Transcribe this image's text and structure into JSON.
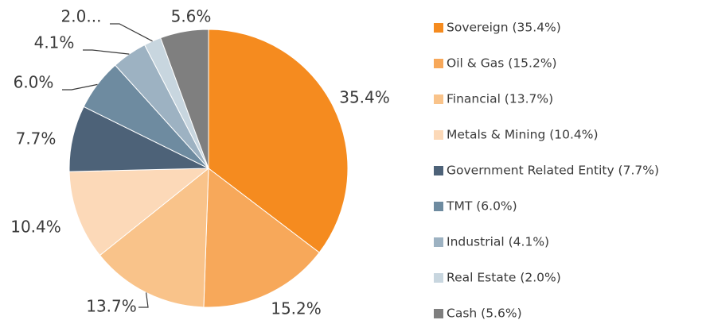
{
  "chart_data": {
    "type": "pie",
    "categories": [
      "Sovereign (35.4%)",
      "Oil & Gas (15.2%)",
      "Financial (13.7%)",
      "Metals & Mining (10.4%)",
      "Government Related Entity (7.7%)",
      "TMT (6.0%)",
      "Industrial (4.1%)",
      "Real Estate (2.0%)",
      "Cash (5.6%)"
    ],
    "values": [
      35.4,
      15.2,
      13.7,
      10.4,
      7.7,
      6.0,
      4.1,
      2.0,
      5.6
    ],
    "value_labels": [
      "35.4%",
      "15.2%",
      "13.7%",
      "10.4%",
      "7.7%",
      "6.0%",
      "4.1%",
      "2.0...",
      "5.6%"
    ],
    "colors": [
      "#f58b1f",
      "#f7a85a",
      "#f9c38a",
      "#fcd9b8",
      "#4d6278",
      "#6e8ba0",
      "#9db2c2",
      "#c8d6df",
      "#7f7f7f"
    ],
    "legend": "right"
  }
}
